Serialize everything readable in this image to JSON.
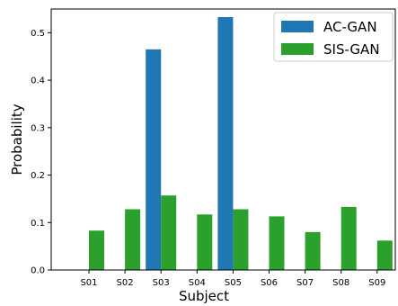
{
  "chart_data": {
    "type": "bar",
    "categories": [
      "S01",
      "S02",
      "S03",
      "S04",
      "S05",
      "S06",
      "S07",
      "S08",
      "S09"
    ],
    "series": [
      {
        "name": "AC-GAN",
        "color": "#1f77b4",
        "values": [
          0,
          0,
          0.465,
          0,
          0.533,
          0,
          0,
          0,
          0
        ]
      },
      {
        "name": "SIS-GAN",
        "color": "#2ca02c",
        "values": [
          0.083,
          0.128,
          0.157,
          0.117,
          0.128,
          0.113,
          0.08,
          0.133,
          0.062
        ]
      }
    ],
    "xlabel": "Subject",
    "ylabel": "Probability",
    "ylim": [
      0,
      0.55
    ],
    "yticks": [
      "0.0",
      "0.1",
      "0.2",
      "0.3",
      "0.4",
      "0.5"
    ],
    "legend": "top-right",
    "grid": false
  }
}
